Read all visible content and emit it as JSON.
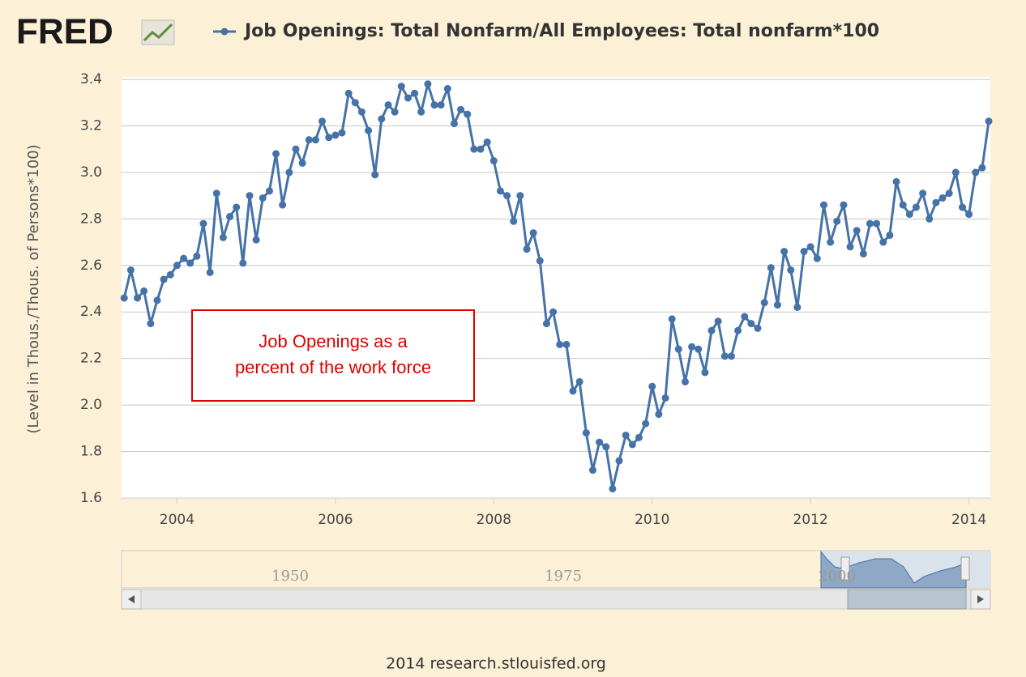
{
  "logo": "FRED",
  "source": "2014 research.stlouisfed.org",
  "navigator": {
    "labels": [
      "1950",
      "1975",
      "2000"
    ]
  },
  "chart_data": {
    "type": "line",
    "ylabel": "(Level in Thous./Thous. of Persons*100)",
    "annotation": [
      "Job Openings as a",
      "percent of the work force"
    ],
    "x": [
      2003.333,
      2003.417,
      2003.5,
      2003.583,
      2003.667,
      2003.75,
      2003.833,
      2003.917,
      2004,
      2004.083,
      2004.167,
      2004.25,
      2004.333,
      2004.417,
      2004.5,
      2004.583,
      2004.667,
      2004.75,
      2004.833,
      2004.917,
      2005,
      2005.083,
      2005.167,
      2005.25,
      2005.333,
      2005.417,
      2005.5,
      2005.583,
      2005.667,
      2005.75,
      2005.833,
      2005.917,
      2006,
      2006.083,
      2006.167,
      2006.25,
      2006.333,
      2006.417,
      2006.5,
      2006.583,
      2006.667,
      2006.75,
      2006.833,
      2006.917,
      2007,
      2007.083,
      2007.167,
      2007.25,
      2007.333,
      2007.417,
      2007.5,
      2007.583,
      2007.667,
      2007.75,
      2007.833,
      2007.917,
      2008,
      2008.083,
      2008.167,
      2008.25,
      2008.333,
      2008.417,
      2008.5,
      2008.583,
      2008.667,
      2008.75,
      2008.833,
      2008.917,
      2009,
      2009.083,
      2009.167,
      2009.25,
      2009.333,
      2009.417,
      2009.5,
      2009.583,
      2009.667,
      2009.75,
      2009.833,
      2009.917,
      2010,
      2010.083,
      2010.167,
      2010.25,
      2010.333,
      2010.417,
      2010.5,
      2010.583,
      2010.667,
      2010.75,
      2010.833,
      2010.917,
      2011,
      2011.083,
      2011.167,
      2011.25,
      2011.333,
      2011.417,
      2011.5,
      2011.583,
      2011.667,
      2011.75,
      2011.833,
      2011.917,
      2012,
      2012.083,
      2012.167,
      2012.25,
      2012.333,
      2012.417,
      2012.5,
      2012.583,
      2012.667,
      2012.75,
      2012.833,
      2012.917,
      2013,
      2013.083,
      2013.167,
      2013.25,
      2013.333,
      2013.417,
      2013.5,
      2013.583,
      2013.667,
      2013.75,
      2013.833,
      2013.917,
      2014,
      2014.083,
      2014.167,
      2014.25
    ],
    "series": [
      {
        "name": "Job Openings: Total Nonfarm/All Employees: Total nonfarm*100",
        "color": "#4572a7",
        "values": [
          2.46,
          2.58,
          2.46,
          2.49,
          2.35,
          2.45,
          2.54,
          2.56,
          2.6,
          2.63,
          2.61,
          2.64,
          2.78,
          2.57,
          2.91,
          2.72,
          2.81,
          2.85,
          2.61,
          2.9,
          2.71,
          2.89,
          2.92,
          3.08,
          2.86,
          3.0,
          3.1,
          3.04,
          3.14,
          3.14,
          3.22,
          3.15,
          3.16,
          3.17,
          3.34,
          3.3,
          3.26,
          3.18,
          2.99,
          3.23,
          3.29,
          3.26,
          3.37,
          3.32,
          3.34,
          3.26,
          3.38,
          3.29,
          3.29,
          3.36,
          3.21,
          3.27,
          3.25,
          3.1,
          3.1,
          3.13,
          3.05,
          2.92,
          2.9,
          2.79,
          2.9,
          2.67,
          2.74,
          2.62,
          2.35,
          2.4,
          2.26,
          2.26,
          2.06,
          2.1,
          1.88,
          1.72,
          1.84,
          1.82,
          1.64,
          1.76,
          1.87,
          1.83,
          1.86,
          1.92,
          2.08,
          1.96,
          2.03,
          2.37,
          2.24,
          2.1,
          2.25,
          2.24,
          2.14,
          2.32,
          2.36,
          2.21,
          2.21,
          2.32,
          2.38,
          2.35,
          2.33,
          2.44,
          2.59,
          2.43,
          2.66,
          2.58,
          2.42,
          2.66,
          2.68,
          2.63,
          2.86,
          2.7,
          2.79,
          2.86,
          2.68,
          2.75,
          2.65,
          2.78,
          2.78,
          2.7,
          2.73,
          2.96,
          2.86,
          2.82,
          2.85,
          2.91,
          2.8,
          2.87,
          2.89,
          2.91,
          3.0,
          2.85,
          2.82,
          3.0,
          3.02,
          3.22
        ]
      }
    ],
    "xlim": [
      2003.3,
      2014.27
    ],
    "xticks": [
      2004,
      2006,
      2008,
      2010,
      2012,
      2014
    ],
    "ylim": [
      1.6,
      3.4
    ],
    "yticks": [
      1.6,
      1.8,
      {
        "value": 2,
        "label": "2.0"
      },
      2.2,
      2.4,
      2.6,
      2.8,
      {
        "value": 3,
        "label": "3.0"
      },
      3.2,
      3.4
    ],
    "grid": true
  }
}
